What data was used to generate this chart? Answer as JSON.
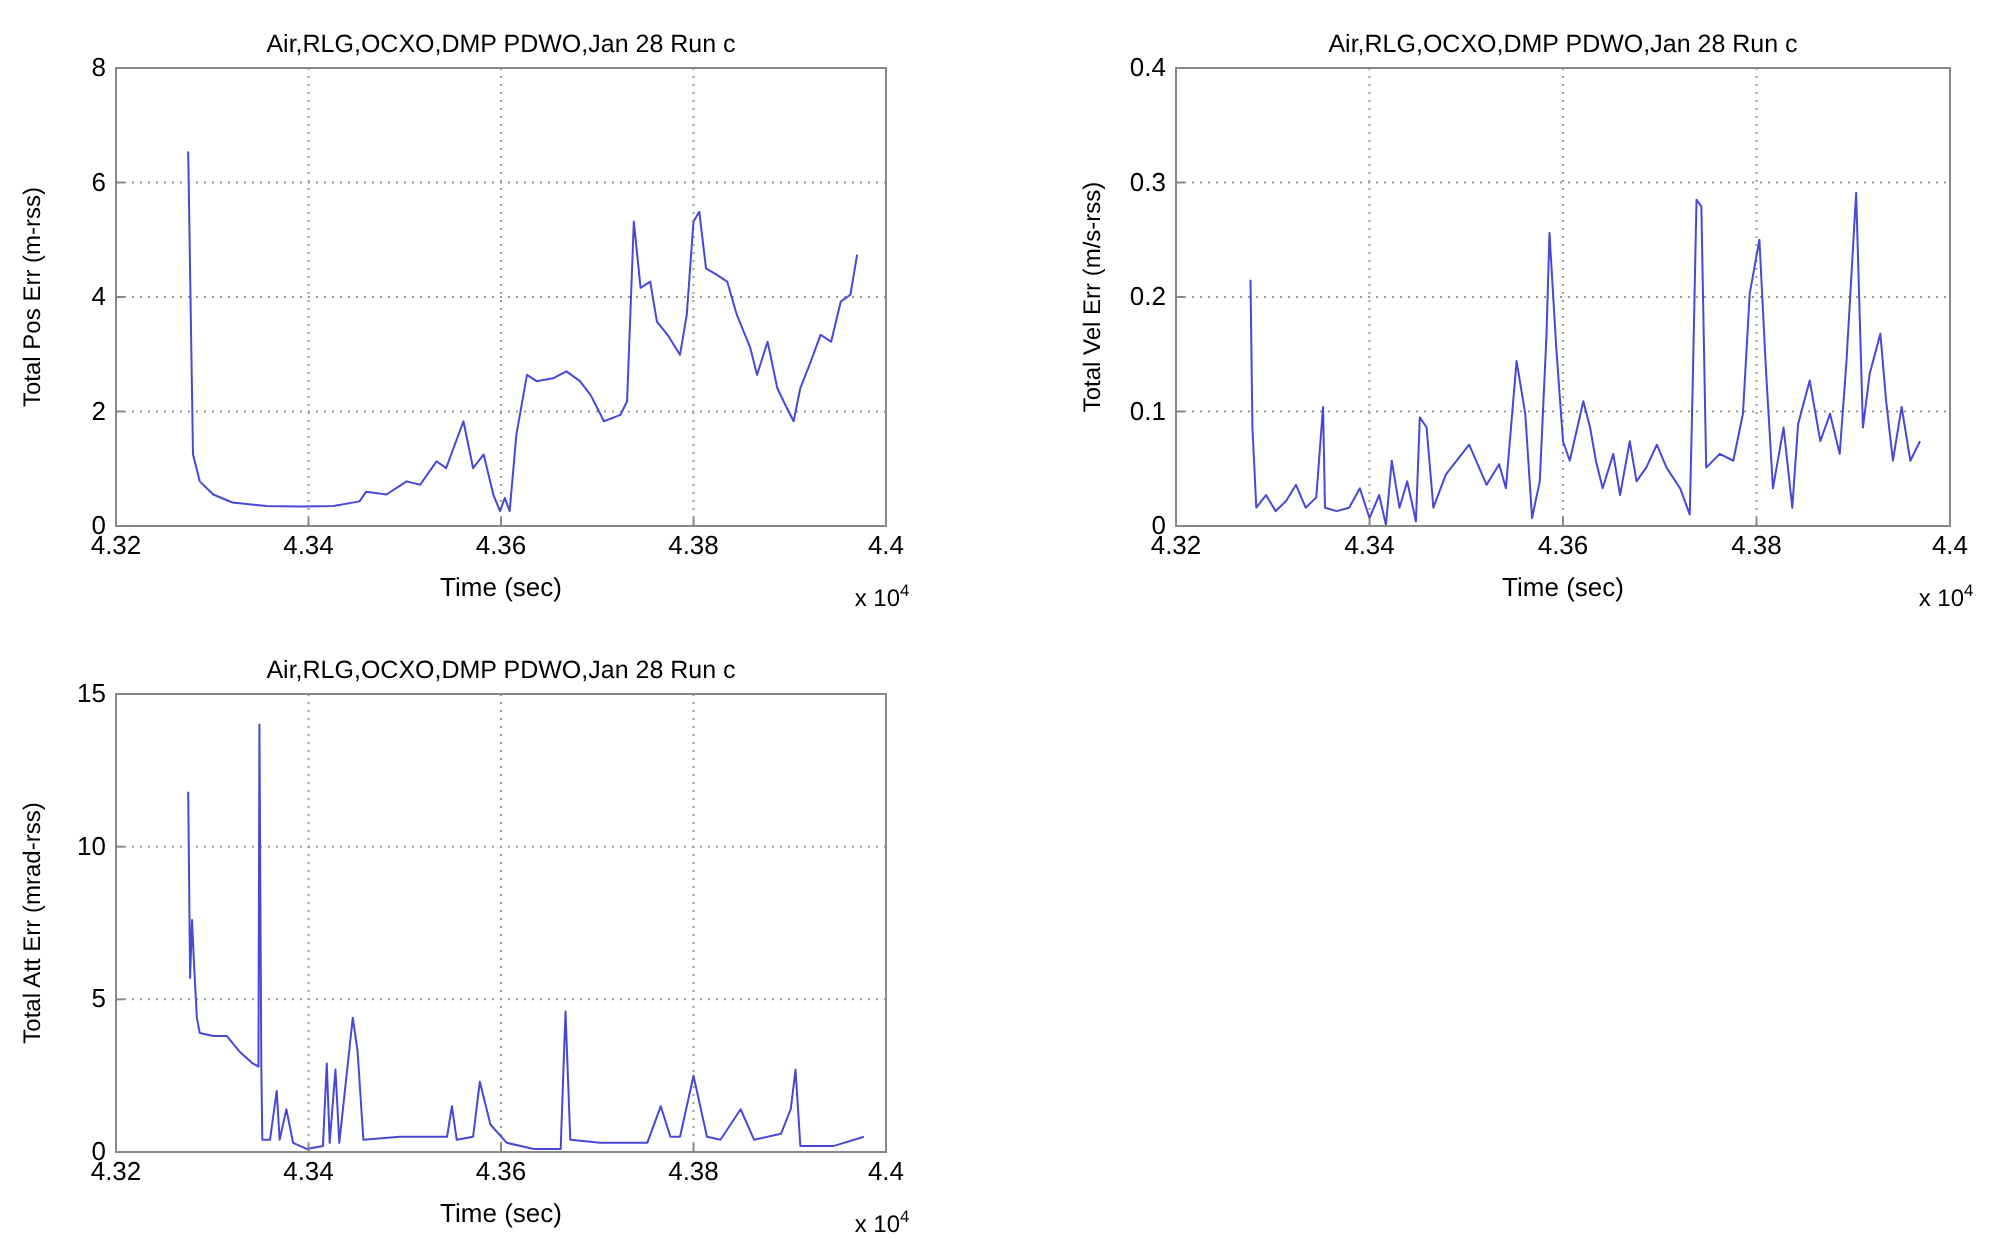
{
  "chart_data": [
    {
      "type": "line",
      "title": "Air,RLG,OCXO,DMP PDWO,Jan 28 Run c",
      "xlabel": "Time (sec)",
      "ylabel": "Total Pos Err (m-rss)",
      "annotations": [
        "x 10$^{4}$"
      ],
      "xlim": [
        4.32,
        4.4
      ],
      "xticks": [
        4.32,
        4.34,
        4.36,
        4.38,
        4.4
      ],
      "ylim": [
        0,
        8
      ],
      "yticks": [
        0,
        2,
        4,
        6,
        8
      ],
      "grid": true,
      "series": [
        {
          "color": "#4848d8",
          "x": [
            4.3275,
            4.328,
            4.3287,
            4.3301,
            4.3321,
            4.3356,
            4.3391,
            4.3426,
            4.3453,
            4.346,
            4.3481,
            4.3502,
            4.3516,
            4.3533,
            4.3543,
            4.3561,
            4.3571,
            4.3582,
            4.3592,
            4.3599,
            4.3604,
            4.3609,
            4.3616,
            4.3627,
            4.3637,
            4.3654,
            4.3668,
            4.3682,
            4.3693,
            4.3707,
            4.3724,
            4.3731,
            4.3738,
            4.3745,
            4.3755,
            4.3762,
            4.3773,
            4.3786,
            4.3793,
            4.38,
            4.3806,
            4.3813,
            4.3824,
            4.3835,
            4.3845,
            4.3859,
            4.3866,
            4.3877,
            4.3887,
            4.3897,
            4.3904,
            4.3911,
            4.3922,
            4.3932,
            4.3943,
            4.3953,
            4.3963,
            4.397
          ],
          "values": [
            6.54,
            1.25,
            0.78,
            0.55,
            0.41,
            0.35,
            0.34,
            0.35,
            0.43,
            0.6,
            0.55,
            0.78,
            0.72,
            1.13,
            1.01,
            1.83,
            1.01,
            1.25,
            0.55,
            0.26,
            0.49,
            0.26,
            1.6,
            2.64,
            2.53,
            2.58,
            2.7,
            2.53,
            2.29,
            1.83,
            1.94,
            2.18,
            5.32,
            4.16,
            4.27,
            3.57,
            3.34,
            2.99,
            3.69,
            5.32,
            5.49,
            4.5,
            4.39,
            4.27,
            3.69,
            3.11,
            2.64,
            3.22,
            2.41,
            2.06,
            1.83,
            2.41,
            2.88,
            3.34,
            3.22,
            3.92,
            4.04,
            4.74
          ]
        }
      ]
    },
    {
      "type": "line",
      "title": "Air,RLG,OCXO,DMP PDWO,Jan 28 Run c",
      "xlabel": "Time (sec)",
      "ylabel": "Total Vel Err (m/s-rss)",
      "annotations": [
        "x 10$^{4}$"
      ],
      "xlim": [
        4.32,
        4.4
      ],
      "xticks": [
        4.32,
        4.34,
        4.36,
        4.38,
        4.4
      ],
      "ylim": [
        0,
        0.4
      ],
      "yticks": [
        0,
        0.1,
        0.2,
        0.3,
        0.4
      ],
      "grid": true,
      "series": [
        {
          "color": "#4848d8",
          "x": [
            4.3277,
            4.3279,
            4.3283,
            4.3293,
            4.3303,
            4.3314,
            4.3324,
            4.3334,
            4.3345,
            4.3352,
            4.3354,
            4.3366,
            4.3379,
            4.339,
            4.34,
            4.341,
            4.3417,
            4.3423,
            4.3431,
            4.3439,
            4.3448,
            4.3452,
            4.3459,
            4.3466,
            4.3479,
            4.3503,
            4.3521,
            4.3534,
            4.3541,
            4.3552,
            4.3561,
            4.3568,
            4.3576,
            4.3583,
            4.3586,
            4.3593,
            4.36,
            4.3607,
            4.3621,
            4.3628,
            4.3634,
            4.3641,
            4.3652,
            4.3659,
            4.3669,
            4.3676,
            4.3686,
            4.3697,
            4.3707,
            4.3721,
            4.3731,
            4.3734,
            4.3738,
            4.3743,
            4.3748,
            4.3762,
            4.3776,
            4.3786,
            4.3793,
            4.3803,
            4.381,
            4.3817,
            4.3828,
            4.3837,
            4.3843,
            4.3855,
            4.3866,
            4.3876,
            4.3886,
            4.3893,
            4.3903,
            4.391,
            4.3917,
            4.3928,
            4.3934,
            4.3941,
            4.395,
            4.3959,
            4.3969
          ],
          "values": [
            0.215,
            0.086,
            0.016,
            0.027,
            0.013,
            0.022,
            0.036,
            0.016,
            0.025,
            0.104,
            0.016,
            0.013,
            0.016,
            0.033,
            0.007,
            0.027,
            0.001,
            0.057,
            0.016,
            0.039,
            0.004,
            0.095,
            0.086,
            0.016,
            0.045,
            0.071,
            0.036,
            0.054,
            0.033,
            0.144,
            0.098,
            0.007,
            0.039,
            0.168,
            0.256,
            0.156,
            0.074,
            0.057,
            0.109,
            0.086,
            0.057,
            0.033,
            0.063,
            0.027,
            0.074,
            0.039,
            0.051,
            0.071,
            0.051,
            0.033,
            0.01,
            0.121,
            0.285,
            0.279,
            0.051,
            0.063,
            0.057,
            0.098,
            0.203,
            0.25,
            0.133,
            0.033,
            0.086,
            0.016,
            0.089,
            0.127,
            0.074,
            0.098,
            0.063,
            0.144,
            0.291,
            0.086,
            0.133,
            0.168,
            0.109,
            0.057,
            0.104,
            0.057,
            0.074
          ]
        }
      ]
    },
    {
      "type": "line",
      "title": "Air,RLG,OCXO,DMP PDWO,Jan 28 Run c",
      "xlabel": "Time (sec)",
      "ylabel": "Total Att Err (mrad-rss)",
      "annotations": [
        "x 10$^{4}$"
      ],
      "xlim": [
        4.32,
        4.4
      ],
      "xticks": [
        4.32,
        4.34,
        4.36,
        4.38,
        4.4
      ],
      "ylim": [
        0,
        15
      ],
      "yticks": [
        0,
        5,
        10,
        15
      ],
      "grid": true,
      "series": [
        {
          "color": "#4848d8",
          "x": [
            4.3275,
            4.3277,
            4.3279,
            4.3281,
            4.3284,
            4.3287,
            4.3301,
            4.3315,
            4.3328,
            4.3342,
            4.3348,
            4.3349,
            4.3351,
            4.3352,
            4.336,
            4.3367,
            4.337,
            4.3377,
            4.3384,
            4.3398,
            4.3415,
            4.3419,
            4.3422,
            4.3428,
            4.3432,
            4.3446,
            4.3451,
            4.3457,
            4.3495,
            4.3544,
            4.3549,
            4.3554,
            4.3571,
            4.3578,
            4.3589,
            4.3606,
            4.3634,
            4.3662,
            4.3667,
            4.3672,
            4.3703,
            4.3752,
            4.3766,
            4.3776,
            4.3786,
            4.38,
            4.3814,
            4.3828,
            4.3849,
            4.3863,
            4.3891,
            4.3901,
            4.3906,
            4.3911,
            4.3946,
            4.3977
          ],
          "values": [
            11.8,
            5.7,
            7.6,
            6.2,
            4.4,
            3.9,
            3.8,
            3.8,
            3.3,
            2.9,
            2.8,
            14,
            2.7,
            0.4,
            0.4,
            2,
            0.4,
            1.4,
            0.3,
            0.1,
            0.2,
            2.9,
            0.3,
            2.7,
            0.3,
            4.4,
            3.3,
            0.4,
            0.5,
            0.5,
            1.5,
            0.4,
            0.5,
            2.3,
            0.9,
            0.3,
            0.1,
            0.1,
            4.6,
            0.4,
            0.3,
            0.3,
            1.5,
            0.5,
            0.5,
            2.5,
            0.5,
            0.4,
            1.4,
            0.4,
            0.6,
            1.4,
            2.7,
            0.2,
            0.2,
            0.5
          ]
        }
      ]
    }
  ]
}
